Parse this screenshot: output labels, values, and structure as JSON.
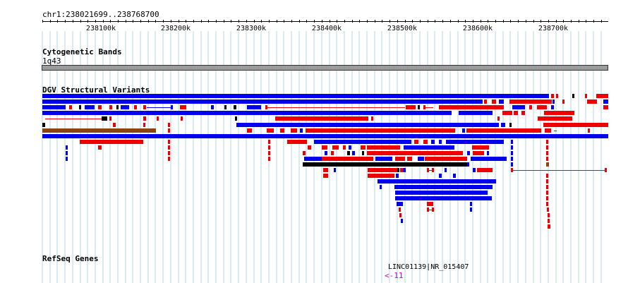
{
  "location": "chr1:238021699..238768700",
  "ruler": {
    "ticks": [
      "238100k",
      "238200k",
      "238300k",
      "238400k",
      "238500k",
      "238600k",
      "238700k"
    ]
  },
  "tracks": {
    "cytogenetic": {
      "name": "Cytogenetic Bands",
      "band": "1q43"
    },
    "dgv": {
      "name": "DGV Structural Variants"
    },
    "refseq": {
      "name": "RefSeq Genes",
      "gene_label": "LINC01139|NR_015407",
      "gene_glyph": "<-11"
    }
  },
  "colors": {
    "gain": "#0000ee",
    "loss": "#ee0000",
    "inversion": "#8b4513",
    "complex": "#000000",
    "grid": "#add8e6",
    "band": "#9b9b9b",
    "gene": "#d400d4"
  }
}
